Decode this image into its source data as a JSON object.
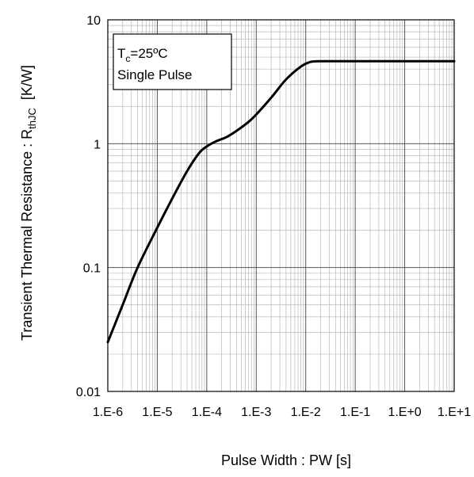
{
  "chart_data": {
    "type": "line",
    "title": "",
    "xlabel": "Pulse Width : PW [s]",
    "ylabel": {
      "prefix": "Transient Thermal  Resistance : R",
      "subscript": "thJC",
      "unit": "[K/W]"
    },
    "x_scale": "log",
    "y_scale": "log",
    "xlim": [
      1e-06,
      10
    ],
    "ylim": [
      0.01,
      10
    ],
    "x_ticks": [
      {
        "value": 1e-06,
        "label": "1.E-6"
      },
      {
        "value": 1e-05,
        "label": "1.E-5"
      },
      {
        "value": 0.0001,
        "label": "1.E-4"
      },
      {
        "value": 0.001,
        "label": "1.E-3"
      },
      {
        "value": 0.01,
        "label": "1.E-2"
      },
      {
        "value": 0.1,
        "label": "1.E-1"
      },
      {
        "value": 1,
        "label": "1.E+0"
      },
      {
        "value": 10,
        "label": "1.E+1"
      }
    ],
    "y_ticks": [
      {
        "value": 0.01,
        "label": "0.01"
      },
      {
        "value": 0.1,
        "label": "0.1"
      },
      {
        "value": 1,
        "label": "1"
      },
      {
        "value": 10,
        "label": "10"
      }
    ],
    "grid": true,
    "annotation": {
      "line1_prefix": "T",
      "line1_subscript": "c",
      "line1_suffix": "=25ºC",
      "line2": "Single Pulse"
    },
    "series": [
      {
        "color": "#000000",
        "x": [
          1e-06,
          2e-06,
          4e-06,
          1e-05,
          2e-05,
          4e-05,
          7e-05,
          0.0001,
          0.00015,
          0.00025,
          0.0004,
          0.0007,
          0.001,
          0.002,
          0.004,
          0.008,
          0.012,
          0.016,
          0.02,
          0.03,
          0.1,
          1,
          10
        ],
        "y": [
          0.025,
          0.05,
          0.1,
          0.21,
          0.36,
          0.6,
          0.84,
          0.95,
          1.04,
          1.13,
          1.27,
          1.5,
          1.72,
          2.35,
          3.3,
          4.2,
          4.55,
          4.62,
          4.63,
          4.63,
          4.63,
          4.63,
          4.63
        ]
      }
    ]
  }
}
